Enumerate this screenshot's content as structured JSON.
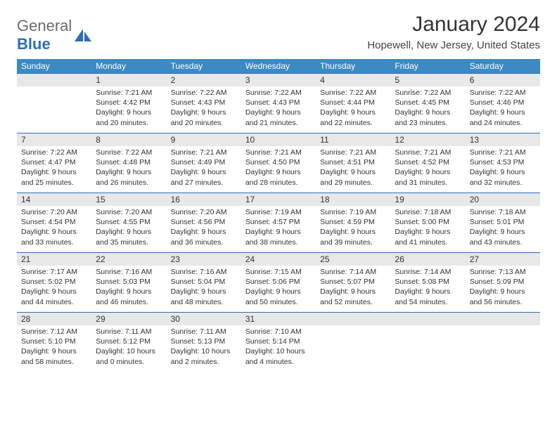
{
  "colors": {
    "header_band": "#3b8ac4",
    "daynum_band_bg": "#e8e8e8",
    "week_divider": "#2d6fb5",
    "text": "#333333",
    "logo_gray": "#6b6b6b",
    "logo_blue": "#2d6fb5",
    "background": "#ffffff"
  },
  "logo": {
    "part1": "General",
    "part2": "Blue"
  },
  "title": "January 2024",
  "location": "Hopewell, New Jersey, United States",
  "dow": [
    "Sunday",
    "Monday",
    "Tuesday",
    "Wednesday",
    "Thursday",
    "Friday",
    "Saturday"
  ],
  "weeks": [
    [
      {
        "num": "",
        "lines": []
      },
      {
        "num": "1",
        "lines": [
          "Sunrise: 7:21 AM",
          "Sunset: 4:42 PM",
          "Daylight: 9 hours",
          "and 20 minutes."
        ]
      },
      {
        "num": "2",
        "lines": [
          "Sunrise: 7:22 AM",
          "Sunset: 4:43 PM",
          "Daylight: 9 hours",
          "and 20 minutes."
        ]
      },
      {
        "num": "3",
        "lines": [
          "Sunrise: 7:22 AM",
          "Sunset: 4:43 PM",
          "Daylight: 9 hours",
          "and 21 minutes."
        ]
      },
      {
        "num": "4",
        "lines": [
          "Sunrise: 7:22 AM",
          "Sunset: 4:44 PM",
          "Daylight: 9 hours",
          "and 22 minutes."
        ]
      },
      {
        "num": "5",
        "lines": [
          "Sunrise: 7:22 AM",
          "Sunset: 4:45 PM",
          "Daylight: 9 hours",
          "and 23 minutes."
        ]
      },
      {
        "num": "6",
        "lines": [
          "Sunrise: 7:22 AM",
          "Sunset: 4:46 PM",
          "Daylight: 9 hours",
          "and 24 minutes."
        ]
      }
    ],
    [
      {
        "num": "7",
        "lines": [
          "Sunrise: 7:22 AM",
          "Sunset: 4:47 PM",
          "Daylight: 9 hours",
          "and 25 minutes."
        ]
      },
      {
        "num": "8",
        "lines": [
          "Sunrise: 7:22 AM",
          "Sunset: 4:48 PM",
          "Daylight: 9 hours",
          "and 26 minutes."
        ]
      },
      {
        "num": "9",
        "lines": [
          "Sunrise: 7:21 AM",
          "Sunset: 4:49 PM",
          "Daylight: 9 hours",
          "and 27 minutes."
        ]
      },
      {
        "num": "10",
        "lines": [
          "Sunrise: 7:21 AM",
          "Sunset: 4:50 PM",
          "Daylight: 9 hours",
          "and 28 minutes."
        ]
      },
      {
        "num": "11",
        "lines": [
          "Sunrise: 7:21 AM",
          "Sunset: 4:51 PM",
          "Daylight: 9 hours",
          "and 29 minutes."
        ]
      },
      {
        "num": "12",
        "lines": [
          "Sunrise: 7:21 AM",
          "Sunset: 4:52 PM",
          "Daylight: 9 hours",
          "and 31 minutes."
        ]
      },
      {
        "num": "13",
        "lines": [
          "Sunrise: 7:21 AM",
          "Sunset: 4:53 PM",
          "Daylight: 9 hours",
          "and 32 minutes."
        ]
      }
    ],
    [
      {
        "num": "14",
        "lines": [
          "Sunrise: 7:20 AM",
          "Sunset: 4:54 PM",
          "Daylight: 9 hours",
          "and 33 minutes."
        ]
      },
      {
        "num": "15",
        "lines": [
          "Sunrise: 7:20 AM",
          "Sunset: 4:55 PM",
          "Daylight: 9 hours",
          "and 35 minutes."
        ]
      },
      {
        "num": "16",
        "lines": [
          "Sunrise: 7:20 AM",
          "Sunset: 4:56 PM",
          "Daylight: 9 hours",
          "and 36 minutes."
        ]
      },
      {
        "num": "17",
        "lines": [
          "Sunrise: 7:19 AM",
          "Sunset: 4:57 PM",
          "Daylight: 9 hours",
          "and 38 minutes."
        ]
      },
      {
        "num": "18",
        "lines": [
          "Sunrise: 7:19 AM",
          "Sunset: 4:59 PM",
          "Daylight: 9 hours",
          "and 39 minutes."
        ]
      },
      {
        "num": "19",
        "lines": [
          "Sunrise: 7:18 AM",
          "Sunset: 5:00 PM",
          "Daylight: 9 hours",
          "and 41 minutes."
        ]
      },
      {
        "num": "20",
        "lines": [
          "Sunrise: 7:18 AM",
          "Sunset: 5:01 PM",
          "Daylight: 9 hours",
          "and 43 minutes."
        ]
      }
    ],
    [
      {
        "num": "21",
        "lines": [
          "Sunrise: 7:17 AM",
          "Sunset: 5:02 PM",
          "Daylight: 9 hours",
          "and 44 minutes."
        ]
      },
      {
        "num": "22",
        "lines": [
          "Sunrise: 7:16 AM",
          "Sunset: 5:03 PM",
          "Daylight: 9 hours",
          "and 46 minutes."
        ]
      },
      {
        "num": "23",
        "lines": [
          "Sunrise: 7:16 AM",
          "Sunset: 5:04 PM",
          "Daylight: 9 hours",
          "and 48 minutes."
        ]
      },
      {
        "num": "24",
        "lines": [
          "Sunrise: 7:15 AM",
          "Sunset: 5:06 PM",
          "Daylight: 9 hours",
          "and 50 minutes."
        ]
      },
      {
        "num": "25",
        "lines": [
          "Sunrise: 7:14 AM",
          "Sunset: 5:07 PM",
          "Daylight: 9 hours",
          "and 52 minutes."
        ]
      },
      {
        "num": "26",
        "lines": [
          "Sunrise: 7:14 AM",
          "Sunset: 5:08 PM",
          "Daylight: 9 hours",
          "and 54 minutes."
        ]
      },
      {
        "num": "27",
        "lines": [
          "Sunrise: 7:13 AM",
          "Sunset: 5:09 PM",
          "Daylight: 9 hours",
          "and 56 minutes."
        ]
      }
    ],
    [
      {
        "num": "28",
        "lines": [
          "Sunrise: 7:12 AM",
          "Sunset: 5:10 PM",
          "Daylight: 9 hours",
          "and 58 minutes."
        ]
      },
      {
        "num": "29",
        "lines": [
          "Sunrise: 7:11 AM",
          "Sunset: 5:12 PM",
          "Daylight: 10 hours",
          "and 0 minutes."
        ]
      },
      {
        "num": "30",
        "lines": [
          "Sunrise: 7:11 AM",
          "Sunset: 5:13 PM",
          "Daylight: 10 hours",
          "and 2 minutes."
        ]
      },
      {
        "num": "31",
        "lines": [
          "Sunrise: 7:10 AM",
          "Sunset: 5:14 PM",
          "Daylight: 10 hours",
          "and 4 minutes."
        ]
      },
      {
        "num": "",
        "lines": []
      },
      {
        "num": "",
        "lines": []
      },
      {
        "num": "",
        "lines": []
      }
    ]
  ]
}
